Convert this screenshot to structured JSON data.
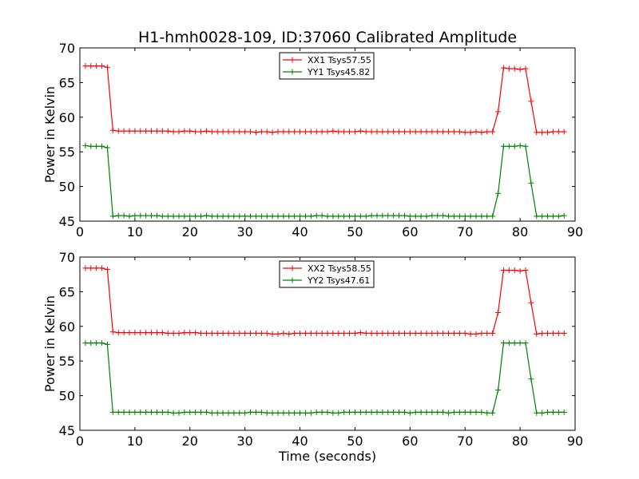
{
  "title": "H1-hmh0028-109, ID:37060 Calibrated Amplitude",
  "chart_data": [
    {
      "type": "line",
      "ylabel": "Power in Kelvin",
      "xlabel": "",
      "xlim": [
        0,
        90
      ],
      "ylim": [
        45,
        70
      ],
      "xticks": [
        0,
        10,
        20,
        30,
        40,
        50,
        60,
        70,
        80,
        90
      ],
      "yticks": [
        45,
        50,
        55,
        60,
        65,
        70
      ],
      "grid": false,
      "legend_position": "top-center",
      "x": [
        1,
        2,
        3,
        4,
        5,
        6,
        7,
        8,
        9,
        10,
        11,
        12,
        13,
        14,
        15,
        16,
        17,
        18,
        19,
        20,
        21,
        22,
        23,
        24,
        25,
        26,
        27,
        28,
        29,
        30,
        31,
        32,
        33,
        34,
        35,
        36,
        37,
        38,
        39,
        40,
        41,
        42,
        43,
        44,
        45,
        46,
        47,
        48,
        49,
        50,
        51,
        52,
        53,
        54,
        55,
        56,
        57,
        58,
        59,
        60,
        61,
        62,
        63,
        64,
        65,
        66,
        67,
        68,
        69,
        70,
        71,
        72,
        73,
        74,
        75,
        76,
        77,
        78,
        79,
        80,
        81,
        82,
        83,
        84,
        85,
        86,
        87,
        88
      ],
      "series": [
        {
          "name": "XX1 Tsys57.55",
          "color": "#ff0000",
          "values": [
            67.4,
            67.4,
            67.4,
            67.4,
            67.2,
            58.1,
            58.0,
            58.0,
            58.0,
            58.0,
            58.0,
            58.0,
            58.0,
            58.0,
            58.0,
            58.0,
            57.9,
            57.9,
            58.0,
            58.0,
            57.9,
            57.9,
            58.0,
            57.9,
            57.9,
            57.9,
            57.9,
            57.9,
            57.9,
            57.9,
            57.9,
            57.8,
            57.9,
            57.9,
            57.8,
            57.9,
            57.9,
            57.9,
            57.9,
            57.9,
            57.9,
            57.9,
            57.9,
            57.9,
            57.9,
            58.0,
            57.9,
            57.9,
            57.9,
            57.9,
            58.0,
            57.9,
            57.9,
            57.9,
            57.9,
            57.9,
            57.9,
            57.9,
            57.9,
            57.9,
            57.9,
            57.9,
            57.9,
            57.9,
            57.9,
            57.9,
            57.9,
            57.9,
            57.9,
            57.8,
            57.8,
            57.9,
            57.8,
            57.9,
            57.9,
            60.8,
            67.1,
            67.0,
            67.0,
            66.9,
            67.0,
            62.3,
            57.8,
            57.8,
            57.8,
            57.9,
            57.9,
            57.9
          ]
        },
        {
          "name": "YY1 Tsys45.82",
          "color": "#008000",
          "values": [
            55.9,
            55.8,
            55.8,
            55.8,
            55.6,
            45.7,
            45.8,
            45.8,
            45.7,
            45.8,
            45.8,
            45.8,
            45.8,
            45.8,
            45.7,
            45.7,
            45.7,
            45.7,
            45.7,
            45.7,
            45.7,
            45.7,
            45.8,
            45.7,
            45.7,
            45.7,
            45.7,
            45.7,
            45.7,
            45.7,
            45.7,
            45.7,
            45.7,
            45.7,
            45.7,
            45.7,
            45.7,
            45.7,
            45.7,
            45.7,
            45.7,
            45.7,
            45.8,
            45.8,
            45.7,
            45.7,
            45.7,
            45.7,
            45.7,
            45.7,
            45.7,
            45.7,
            45.8,
            45.8,
            45.8,
            45.8,
            45.8,
            45.8,
            45.8,
            45.7,
            45.7,
            45.7,
            45.7,
            45.8,
            45.8,
            45.8,
            45.7,
            45.7,
            45.7,
            45.7,
            45.7,
            45.7,
            45.7,
            45.7,
            45.7,
            49.0,
            55.8,
            55.8,
            55.8,
            55.9,
            55.8,
            50.5,
            45.7,
            45.7,
            45.7,
            45.7,
            45.7,
            45.8
          ]
        }
      ]
    },
    {
      "type": "line",
      "ylabel": "Power in Kelvin",
      "xlabel": "Time (seconds)",
      "xlim": [
        0,
        90
      ],
      "ylim": [
        45,
        70
      ],
      "xticks": [
        0,
        10,
        20,
        30,
        40,
        50,
        60,
        70,
        80,
        90
      ],
      "yticks": [
        45,
        50,
        55,
        60,
        65,
        70
      ],
      "grid": false,
      "legend_position": "top-center",
      "x": [
        1,
        2,
        3,
        4,
        5,
        6,
        7,
        8,
        9,
        10,
        11,
        12,
        13,
        14,
        15,
        16,
        17,
        18,
        19,
        20,
        21,
        22,
        23,
        24,
        25,
        26,
        27,
        28,
        29,
        30,
        31,
        32,
        33,
        34,
        35,
        36,
        37,
        38,
        39,
        40,
        41,
        42,
        43,
        44,
        45,
        46,
        47,
        48,
        49,
        50,
        51,
        52,
        53,
        54,
        55,
        56,
        57,
        58,
        59,
        60,
        61,
        62,
        63,
        64,
        65,
        66,
        67,
        68,
        69,
        70,
        71,
        72,
        73,
        74,
        75,
        76,
        77,
        78,
        79,
        80,
        81,
        82,
        83,
        84,
        85,
        86,
        87,
        88
      ],
      "series": [
        {
          "name": "XX2 Tsys58.55",
          "color": "#ff0000",
          "values": [
            68.4,
            68.4,
            68.4,
            68.4,
            68.2,
            59.2,
            59.1,
            59.1,
            59.1,
            59.1,
            59.1,
            59.1,
            59.1,
            59.1,
            59.1,
            59.0,
            59.0,
            59.0,
            59.1,
            59.1,
            59.1,
            59.0,
            59.0,
            59.0,
            59.0,
            59.0,
            59.0,
            59.0,
            59.0,
            59.0,
            59.0,
            59.0,
            59.0,
            59.0,
            58.9,
            58.9,
            59.0,
            58.9,
            59.0,
            59.0,
            59.0,
            59.0,
            59.0,
            59.0,
            59.0,
            59.0,
            59.0,
            59.0,
            59.0,
            59.0,
            59.1,
            59.0,
            59.0,
            59.0,
            59.0,
            59.0,
            59.0,
            59.0,
            59.0,
            59.0,
            59.0,
            59.0,
            59.0,
            59.0,
            59.0,
            59.0,
            59.0,
            59.0,
            59.0,
            59.0,
            58.9,
            58.9,
            59.0,
            59.0,
            59.0,
            62.0,
            68.1,
            68.1,
            68.1,
            68.0,
            68.1,
            63.4,
            58.9,
            59.0,
            59.0,
            59.0,
            59.0,
            59.0
          ]
        },
        {
          "name": "YY2 Tsys47.61",
          "color": "#008000",
          "values": [
            57.6,
            57.6,
            57.6,
            57.6,
            57.4,
            47.6,
            47.6,
            47.6,
            47.6,
            47.6,
            47.6,
            47.6,
            47.6,
            47.6,
            47.6,
            47.6,
            47.5,
            47.5,
            47.6,
            47.6,
            47.6,
            47.6,
            47.6,
            47.5,
            47.5,
            47.5,
            47.5,
            47.5,
            47.5,
            47.5,
            47.6,
            47.6,
            47.6,
            47.5,
            47.5,
            47.5,
            47.5,
            47.5,
            47.5,
            47.5,
            47.5,
            47.5,
            47.6,
            47.6,
            47.6,
            47.5,
            47.5,
            47.6,
            47.6,
            47.6,
            47.6,
            47.6,
            47.6,
            47.6,
            47.6,
            47.6,
            47.6,
            47.6,
            47.6,
            47.5,
            47.6,
            47.6,
            47.6,
            47.6,
            47.6,
            47.6,
            47.5,
            47.6,
            47.6,
            47.6,
            47.6,
            47.6,
            47.6,
            47.5,
            47.5,
            50.8,
            57.6,
            57.6,
            57.6,
            57.6,
            57.6,
            52.4,
            47.5,
            47.5,
            47.6,
            47.6,
            47.6,
            47.6
          ]
        }
      ]
    }
  ]
}
